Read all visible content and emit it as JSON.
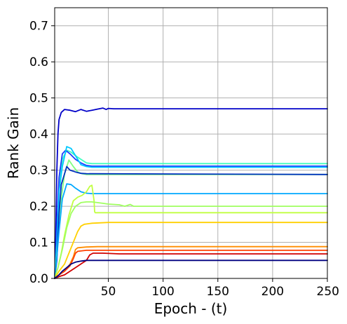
{
  "chart_data": {
    "type": "line",
    "title": "",
    "xlabel": "Epoch - (t)",
    "ylabel": "Rank Gain",
    "xlim": [
      1,
      250
    ],
    "ylim": [
      0.0,
      0.75
    ],
    "xticks": [
      50,
      100,
      150,
      200,
      250
    ],
    "xtick_labels": [
      "50",
      "100",
      "150",
      "200",
      "250"
    ],
    "yticks": [
      0.0,
      0.1,
      0.2,
      0.3,
      0.4,
      0.5,
      0.6,
      0.7
    ],
    "ytick_labels": [
      "0.0",
      "0.1",
      "0.2",
      "0.3",
      "0.4",
      "0.5",
      "0.6",
      "0.7"
    ],
    "grid": true,
    "series": [
      {
        "color": "#0000c8",
        "points": [
          [
            1,
            0.0
          ],
          [
            2,
            0.12
          ],
          [
            3,
            0.3
          ],
          [
            4,
            0.4
          ],
          [
            5,
            0.44
          ],
          [
            7,
            0.46
          ],
          [
            10,
            0.468
          ],
          [
            15,
            0.466
          ],
          [
            20,
            0.462
          ],
          [
            25,
            0.468
          ],
          [
            30,
            0.463
          ],
          [
            35,
            0.466
          ],
          [
            40,
            0.469
          ],
          [
            45,
            0.472
          ],
          [
            48,
            0.468
          ],
          [
            50,
            0.471
          ],
          [
            55,
            0.47
          ],
          [
            250,
            0.47
          ]
        ]
      },
      {
        "color": "#40ffc0",
        "points": [
          [
            1,
            0.0
          ],
          [
            3,
            0.12
          ],
          [
            5,
            0.25
          ],
          [
            8,
            0.33
          ],
          [
            12,
            0.355
          ],
          [
            16,
            0.35
          ],
          [
            20,
            0.34
          ],
          [
            25,
            0.33
          ],
          [
            30,
            0.32
          ],
          [
            35,
            0.318
          ],
          [
            40,
            0.318
          ],
          [
            250,
            0.318
          ]
        ]
      },
      {
        "color": "#1c3cff",
        "points": [
          [
            1,
            0.0
          ],
          [
            3,
            0.14
          ],
          [
            5,
            0.28
          ],
          [
            8,
            0.345
          ],
          [
            11,
            0.355
          ],
          [
            15,
            0.345
          ],
          [
            20,
            0.33
          ],
          [
            25,
            0.32
          ],
          [
            30,
            0.313
          ],
          [
            35,
            0.311
          ],
          [
            250,
            0.311
          ]
        ]
      },
      {
        "color": "#00c8ff",
        "points": [
          [
            1,
            0.0
          ],
          [
            3,
            0.1
          ],
          [
            5,
            0.24
          ],
          [
            8,
            0.31
          ],
          [
            12,
            0.365
          ],
          [
            16,
            0.36
          ],
          [
            20,
            0.34
          ],
          [
            25,
            0.315
          ],
          [
            30,
            0.31
          ],
          [
            35,
            0.308
          ],
          [
            250,
            0.308
          ]
        ]
      },
      {
        "color": "#80ff80",
        "points": [
          [
            1,
            0.0
          ],
          [
            3,
            0.07
          ],
          [
            6,
            0.2
          ],
          [
            10,
            0.29
          ],
          [
            14,
            0.328
          ],
          [
            18,
            0.31
          ],
          [
            22,
            0.295
          ],
          [
            26,
            0.29
          ],
          [
            30,
            0.288
          ],
          [
            250,
            0.288
          ]
        ]
      },
      {
        "color": "#0030c0",
        "points": [
          [
            1,
            0.0
          ],
          [
            3,
            0.05
          ],
          [
            5,
            0.18
          ],
          [
            7,
            0.26
          ],
          [
            10,
            0.29
          ],
          [
            12,
            0.31
          ],
          [
            15,
            0.3
          ],
          [
            20,
            0.295
          ],
          [
            25,
            0.291
          ],
          [
            30,
            0.29
          ],
          [
            250,
            0.288
          ]
        ]
      },
      {
        "color": "#00a8ff",
        "points": [
          [
            1,
            0.0
          ],
          [
            3,
            0.06
          ],
          [
            5,
            0.13
          ],
          [
            8,
            0.22
          ],
          [
            12,
            0.262
          ],
          [
            16,
            0.26
          ],
          [
            20,
            0.25
          ],
          [
            25,
            0.24
          ],
          [
            30,
            0.236
          ],
          [
            35,
            0.235
          ],
          [
            250,
            0.235
          ]
        ]
      },
      {
        "color": "#c0ff40",
        "points": [
          [
            1,
            0.0
          ],
          [
            4,
            0.03
          ],
          [
            7,
            0.07
          ],
          [
            10,
            0.12
          ],
          [
            14,
            0.175
          ],
          [
            18,
            0.215
          ],
          [
            22,
            0.225
          ],
          [
            26,
            0.23
          ],
          [
            30,
            0.24
          ],
          [
            33,
            0.255
          ],
          [
            35,
            0.258
          ],
          [
            37,
            0.215
          ],
          [
            37.5,
            0.185
          ],
          [
            38,
            0.182
          ],
          [
            250,
            0.182
          ]
        ]
      },
      {
        "color": "#a0ff60",
        "points": [
          [
            1,
            0.0
          ],
          [
            4,
            0.03
          ],
          [
            8,
            0.08
          ],
          [
            12,
            0.14
          ],
          [
            16,
            0.18
          ],
          [
            20,
            0.2
          ],
          [
            25,
            0.21
          ],
          [
            30,
            0.212
          ],
          [
            35,
            0.212
          ],
          [
            40,
            0.21
          ],
          [
            45,
            0.208
          ],
          [
            50,
            0.206
          ],
          [
            55,
            0.205
          ],
          [
            60,
            0.204
          ],
          [
            65,
            0.2
          ],
          [
            70,
            0.205
          ],
          [
            73,
            0.2
          ],
          [
            250,
            0.2
          ]
        ]
      },
      {
        "color": "#ffd000",
        "points": [
          [
            1,
            0.0
          ],
          [
            5,
            0.02
          ],
          [
            10,
            0.04
          ],
          [
            14,
            0.07
          ],
          [
            18,
            0.1
          ],
          [
            22,
            0.13
          ],
          [
            25,
            0.145
          ],
          [
            28,
            0.15
          ],
          [
            35,
            0.153
          ],
          [
            50,
            0.155
          ],
          [
            250,
            0.155
          ]
        ]
      },
      {
        "color": "#ff8c00",
        "points": [
          [
            1,
            0.0
          ],
          [
            5,
            0.01
          ],
          [
            10,
            0.02
          ],
          [
            15,
            0.04
          ],
          [
            18,
            0.06
          ],
          [
            20,
            0.08
          ],
          [
            22,
            0.085
          ],
          [
            30,
            0.087
          ],
          [
            40,
            0.088
          ],
          [
            250,
            0.088
          ]
        ]
      },
      {
        "color": "#ff4000",
        "points": [
          [
            1,
            0.0
          ],
          [
            5,
            0.01
          ],
          [
            10,
            0.02
          ],
          [
            15,
            0.035
          ],
          [
            18,
            0.055
          ],
          [
            20,
            0.07
          ],
          [
            22,
            0.075
          ],
          [
            30,
            0.078
          ],
          [
            250,
            0.078
          ]
        ]
      },
      {
        "color": "#d00000",
        "points": [
          [
            1,
            0.0
          ],
          [
            5,
            0.005
          ],
          [
            10,
            0.01
          ],
          [
            15,
            0.02
          ],
          [
            20,
            0.03
          ],
          [
            25,
            0.04
          ],
          [
            30,
            0.05
          ],
          [
            33,
            0.065
          ],
          [
            36,
            0.07
          ],
          [
            45,
            0.07
          ],
          [
            60,
            0.068
          ],
          [
            250,
            0.068
          ]
        ]
      },
      {
        "color": "#000080",
        "points": [
          [
            1,
            0.0
          ],
          [
            5,
            0.01
          ],
          [
            8,
            0.02
          ],
          [
            12,
            0.03
          ],
          [
            16,
            0.04
          ],
          [
            20,
            0.045
          ],
          [
            25,
            0.048
          ],
          [
            30,
            0.05
          ],
          [
            250,
            0.05
          ]
        ]
      }
    ]
  }
}
